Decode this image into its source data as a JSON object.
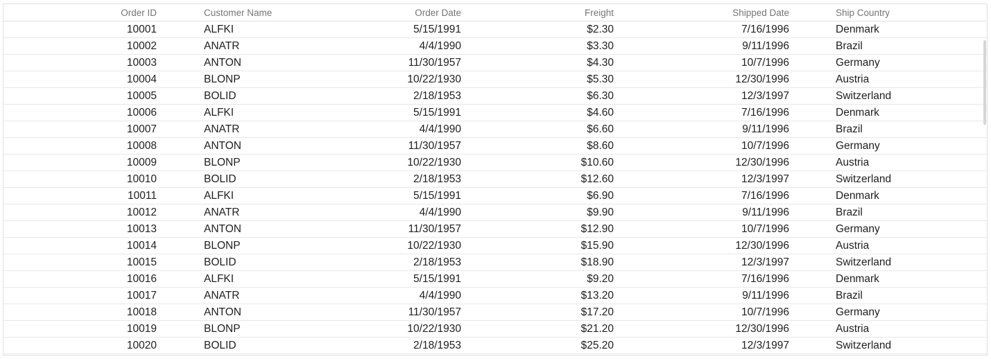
{
  "grid": {
    "columns": [
      {
        "key": "id",
        "label": "Order ID"
      },
      {
        "key": "name",
        "label": "Customer Name"
      },
      {
        "key": "odate",
        "label": "Order Date"
      },
      {
        "key": "freight",
        "label": "Freight"
      },
      {
        "key": "sdate",
        "label": "Shipped Date"
      },
      {
        "key": "country",
        "label": "Ship Country"
      }
    ],
    "rows": [
      {
        "id": "10001",
        "name": "ALFKI",
        "odate": "5/15/1991",
        "freight": "$2.30",
        "sdate": "7/16/1996",
        "country": "Denmark"
      },
      {
        "id": "10002",
        "name": "ANATR",
        "odate": "4/4/1990",
        "freight": "$3.30",
        "sdate": "9/11/1996",
        "country": "Brazil"
      },
      {
        "id": "10003",
        "name": "ANTON",
        "odate": "11/30/1957",
        "freight": "$4.30",
        "sdate": "10/7/1996",
        "country": "Germany"
      },
      {
        "id": "10004",
        "name": "BLONP",
        "odate": "10/22/1930",
        "freight": "$5.30",
        "sdate": "12/30/1996",
        "country": "Austria"
      },
      {
        "id": "10005",
        "name": "BOLID",
        "odate": "2/18/1953",
        "freight": "$6.30",
        "sdate": "12/3/1997",
        "country": "Switzerland"
      },
      {
        "id": "10006",
        "name": "ALFKI",
        "odate": "5/15/1991",
        "freight": "$4.60",
        "sdate": "7/16/1996",
        "country": "Denmark"
      },
      {
        "id": "10007",
        "name": "ANATR",
        "odate": "4/4/1990",
        "freight": "$6.60",
        "sdate": "9/11/1996",
        "country": "Brazil"
      },
      {
        "id": "10008",
        "name": "ANTON",
        "odate": "11/30/1957",
        "freight": "$8.60",
        "sdate": "10/7/1996",
        "country": "Germany"
      },
      {
        "id": "10009",
        "name": "BLONP",
        "odate": "10/22/1930",
        "freight": "$10.60",
        "sdate": "12/30/1996",
        "country": "Austria"
      },
      {
        "id": "10010",
        "name": "BOLID",
        "odate": "2/18/1953",
        "freight": "$12.60",
        "sdate": "12/3/1997",
        "country": "Switzerland"
      },
      {
        "id": "10011",
        "name": "ALFKI",
        "odate": "5/15/1991",
        "freight": "$6.90",
        "sdate": "7/16/1996",
        "country": "Denmark"
      },
      {
        "id": "10012",
        "name": "ANATR",
        "odate": "4/4/1990",
        "freight": "$9.90",
        "sdate": "9/11/1996",
        "country": "Brazil"
      },
      {
        "id": "10013",
        "name": "ANTON",
        "odate": "11/30/1957",
        "freight": "$12.90",
        "sdate": "10/7/1996",
        "country": "Germany"
      },
      {
        "id": "10014",
        "name": "BLONP",
        "odate": "10/22/1930",
        "freight": "$15.90",
        "sdate": "12/30/1996",
        "country": "Austria"
      },
      {
        "id": "10015",
        "name": "BOLID",
        "odate": "2/18/1953",
        "freight": "$18.90",
        "sdate": "12/3/1997",
        "country": "Switzerland"
      },
      {
        "id": "10016",
        "name": "ALFKI",
        "odate": "5/15/1991",
        "freight": "$9.20",
        "sdate": "7/16/1996",
        "country": "Denmark"
      },
      {
        "id": "10017",
        "name": "ANATR",
        "odate": "4/4/1990",
        "freight": "$13.20",
        "sdate": "9/11/1996",
        "country": "Brazil"
      },
      {
        "id": "10018",
        "name": "ANTON",
        "odate": "11/30/1957",
        "freight": "$17.20",
        "sdate": "10/7/1996",
        "country": "Germany"
      },
      {
        "id": "10019",
        "name": "BLONP",
        "odate": "10/22/1930",
        "freight": "$21.20",
        "sdate": "12/30/1996",
        "country": "Austria"
      },
      {
        "id": "10020",
        "name": "BOLID",
        "odate": "2/18/1953",
        "freight": "$25.20",
        "sdate": "12/3/1997",
        "country": "Switzerland"
      }
    ]
  },
  "colors": {
    "header_text": "#757575",
    "cell_text": "#212121",
    "border": "#e0e0e0"
  }
}
